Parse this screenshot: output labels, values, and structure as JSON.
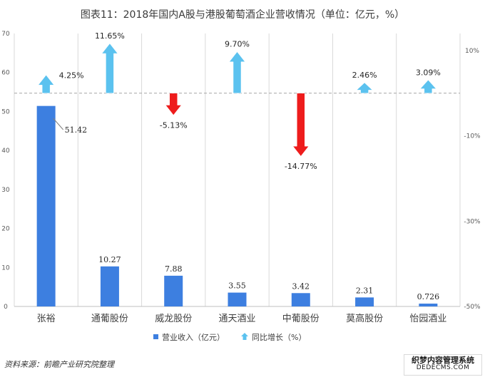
{
  "title": "图表11：2018年国内A股与港股葡萄酒企业营收情况（单位：亿元，%）",
  "source": "资料来源：前瞻产业研究院整理",
  "watermark": {
    "top": "织梦内容管理系统",
    "bottom": "DEDECMS.COM"
  },
  "colors": {
    "bar": "#3d7fe0",
    "arrow_up": "#5bc2ef",
    "arrow_down": "#ee1c1c",
    "grid": "#d9d9d9"
  },
  "chart_data": {
    "type": "bar",
    "categories": [
      "张裕",
      "通葡股份",
      "威龙股份",
      "通天酒业",
      "中葡股份",
      "莫高股份",
      "怡园酒业"
    ],
    "series": [
      {
        "name": "营业收入（亿元）",
        "axis": "left",
        "values": [
          51.42,
          10.27,
          7.88,
          3.55,
          3.42,
          2.31,
          0.726
        ]
      },
      {
        "name": "同比增长（%）",
        "axis": "right",
        "marker": "arrow",
        "values": [
          4.25,
          11.65,
          -5.13,
          9.7,
          -14.77,
          2.46,
          3.09
        ]
      }
    ],
    "value_labels": [
      "51.42",
      "10.27",
      "7.88",
      "3.55",
      "3.42",
      "2.31",
      "0.726"
    ],
    "growth_labels": [
      "4.25%",
      "11.65%",
      "-5.13%",
      "9.70%",
      "-14.77%",
      "2.46%",
      "3.09%"
    ],
    "y_left": {
      "ylim": [
        0,
        70
      ],
      "ticks": [
        0,
        10,
        20,
        30,
        40,
        50,
        60,
        70
      ]
    },
    "y_right": {
      "ylim": [
        -50,
        14
      ],
      "ticks": [
        10,
        -10,
        -30,
        -50
      ],
      "tick_labels": [
        "10%",
        "-10%",
        "-30%",
        "-50%"
      ]
    },
    "grid": "vertical",
    "legend_position": "bottom"
  }
}
